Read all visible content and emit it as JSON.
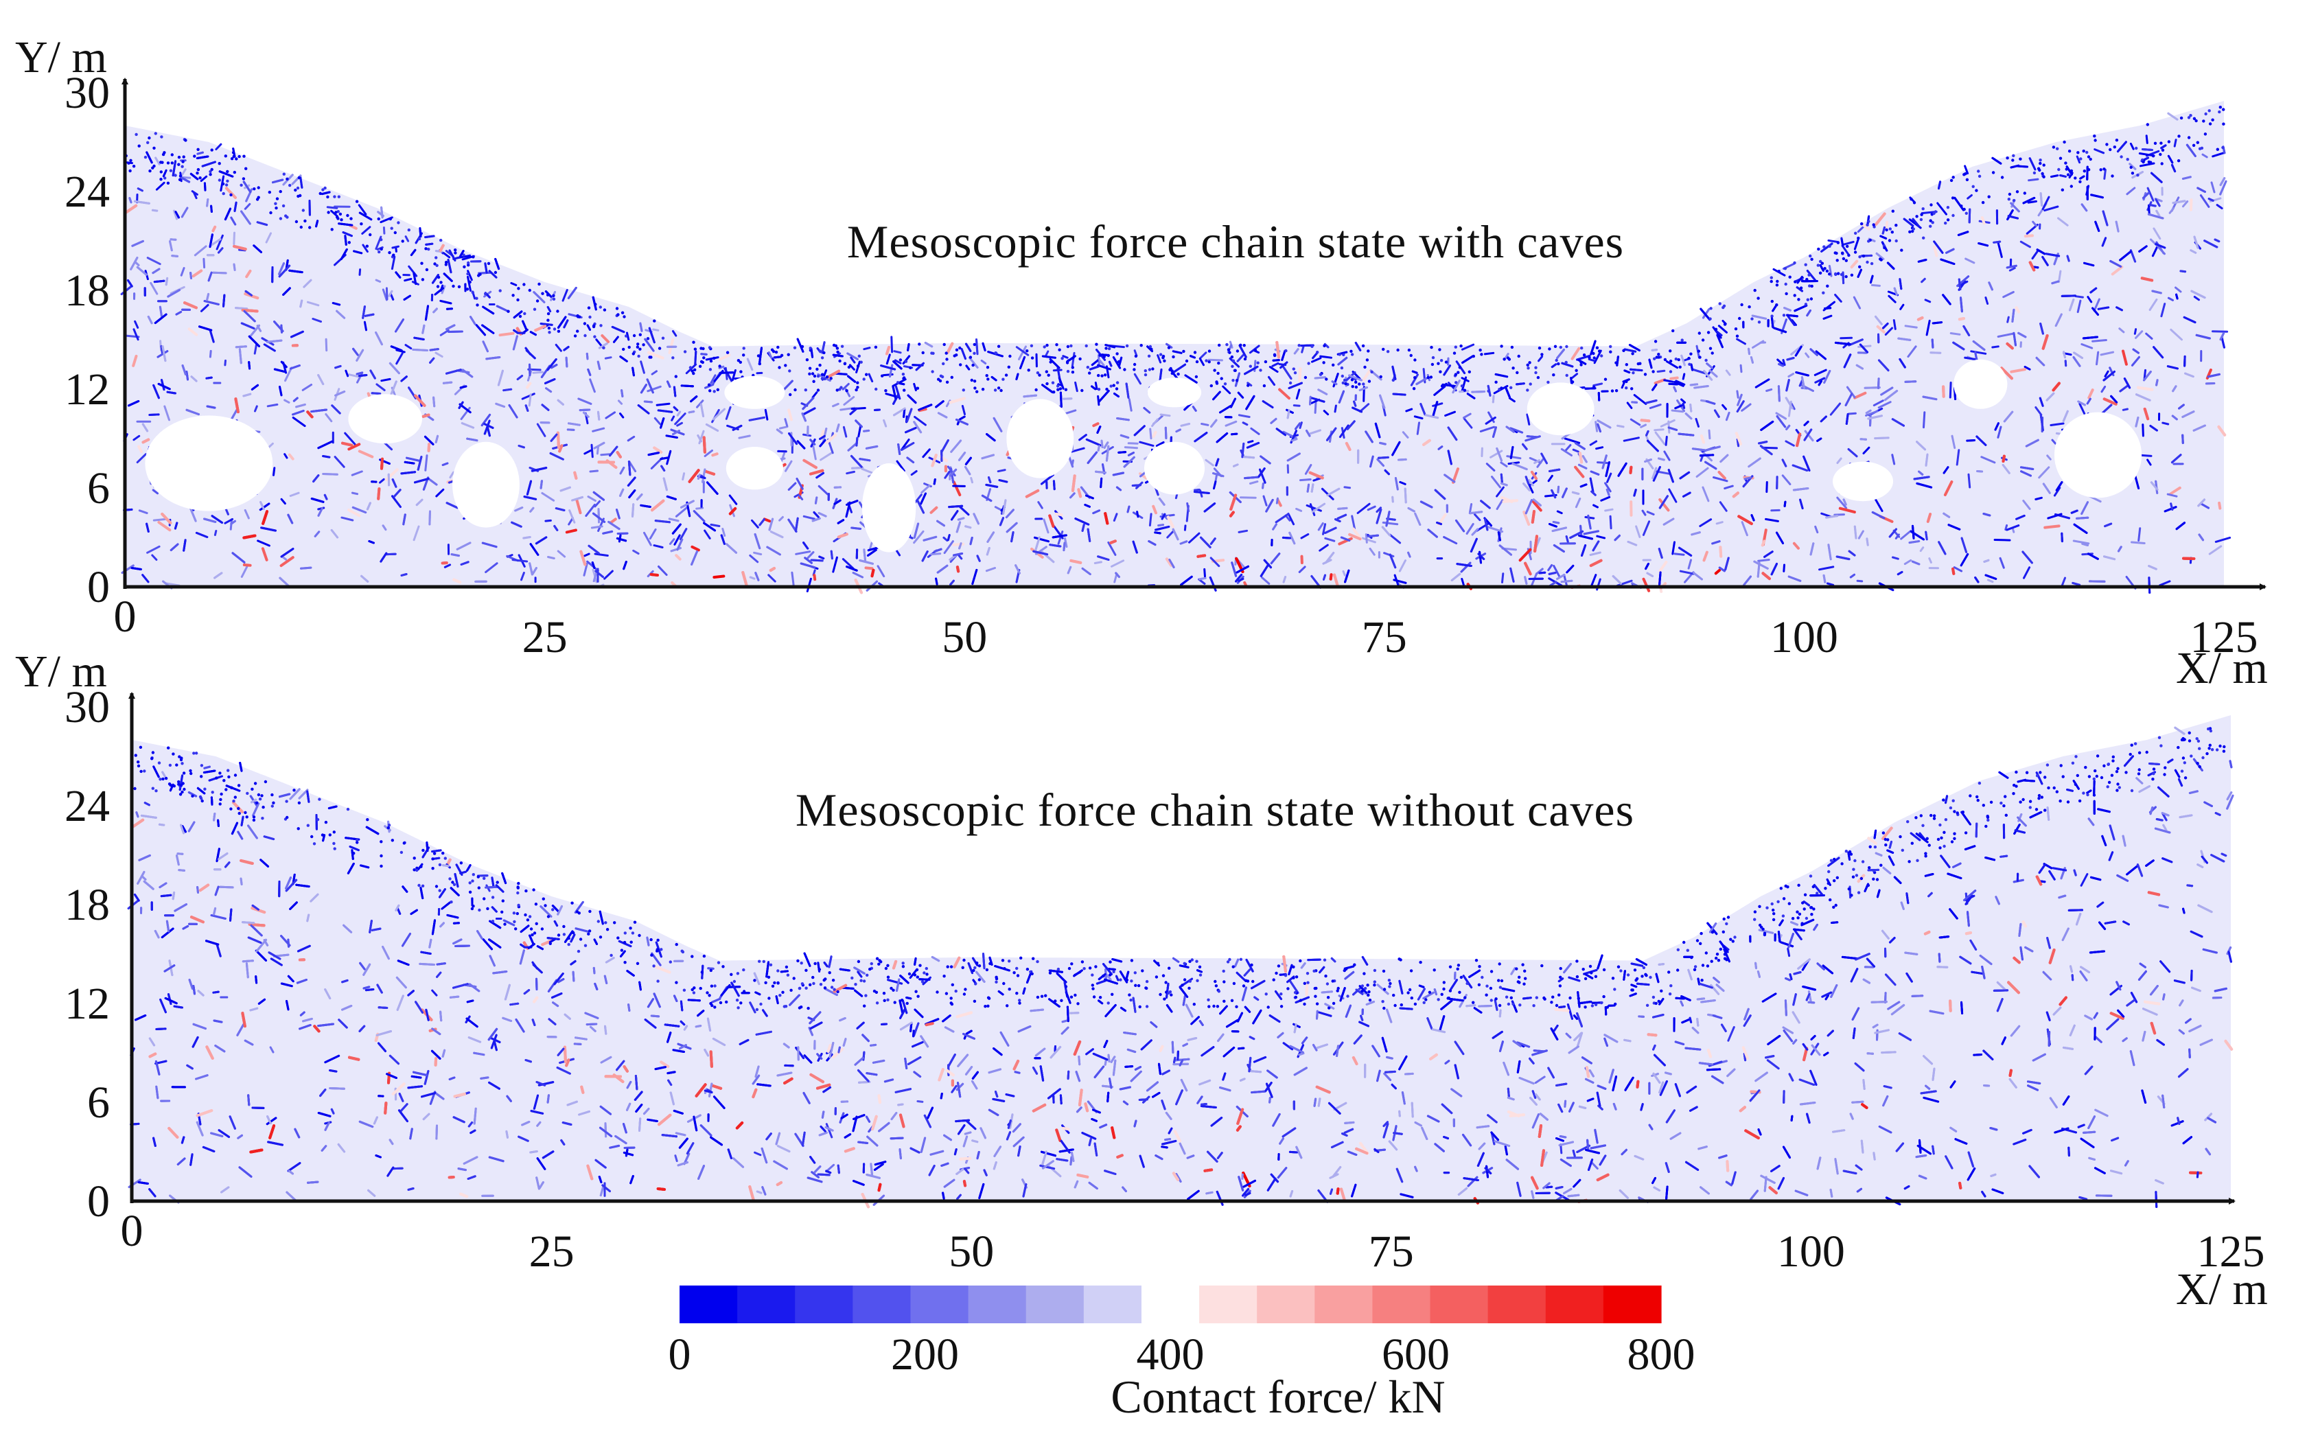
{
  "chart_data": {
    "type": "scatter",
    "description_kind": "force-chain network map (DEM contact forces) drawn as colored particle/contact marks",
    "x_axis_label": "X/ m",
    "y_axis_label": "Y/ m",
    "x_range": [
      0,
      125
    ],
    "y_range": [
      0,
      30
    ],
    "x_ticks": [
      "0",
      "25",
      "50",
      "75",
      "100",
      "125"
    ],
    "y_ticks": [
      "0",
      "6",
      "12",
      "18",
      "24",
      "30"
    ],
    "panels": [
      {
        "title": "Mesoscopic force chain state with caves",
        "caves": [
          {
            "x": 5,
            "y": 7.5,
            "rx": 3.8,
            "ry": 2.9
          },
          {
            "x": 15.5,
            "y": 10.2,
            "rx": 2.2,
            "ry": 1.5
          },
          {
            "x": 21.5,
            "y": 6.2,
            "rx": 2.0,
            "ry": 2.6
          },
          {
            "x": 37.5,
            "y": 11.8,
            "rx": 1.8,
            "ry": 1.0
          },
          {
            "x": 37.5,
            "y": 7.2,
            "rx": 1.7,
            "ry": 1.3
          },
          {
            "x": 45.5,
            "y": 4.8,
            "rx": 1.6,
            "ry": 2.7
          },
          {
            "x": 54.5,
            "y": 9.0,
            "rx": 2.0,
            "ry": 2.4
          },
          {
            "x": 62.5,
            "y": 11.8,
            "rx": 1.6,
            "ry": 0.9
          },
          {
            "x": 62.5,
            "y": 7.2,
            "rx": 1.8,
            "ry": 1.6
          },
          {
            "x": 85.5,
            "y": 10.8,
            "rx": 2.0,
            "ry": 1.6
          },
          {
            "x": 103.5,
            "y": 6.4,
            "rx": 1.8,
            "ry": 1.2
          },
          {
            "x": 110.5,
            "y": 12.3,
            "rx": 1.6,
            "ry": 1.5
          },
          {
            "x": 117.5,
            "y": 8.0,
            "rx": 2.6,
            "ry": 2.6
          }
        ]
      },
      {
        "title": "Mesoscopic force chain state without caves",
        "caves": []
      }
    ],
    "surface_profile": [
      [
        0,
        28
      ],
      [
        5,
        27
      ],
      [
        10,
        25
      ],
      [
        15,
        23
      ],
      [
        20,
        20.5
      ],
      [
        25,
        18.5
      ],
      [
        30,
        17
      ],
      [
        33,
        15.5
      ],
      [
        35,
        14.6
      ],
      [
        50,
        14.8
      ],
      [
        75,
        14.7
      ],
      [
        90,
        14.6
      ],
      [
        93,
        16
      ],
      [
        97,
        18.5
      ],
      [
        100,
        20
      ],
      [
        105,
        23
      ],
      [
        110,
        25.5
      ],
      [
        115,
        27
      ],
      [
        120,
        28
      ],
      [
        125,
        29.5
      ]
    ],
    "colorbar": {
      "title": "Contact force/ kN",
      "ticks": [
        "0",
        "200",
        "400",
        "600",
        "800"
      ],
      "tick_values": [
        0,
        200,
        400,
        600,
        800
      ],
      "range": [
        0,
        800
      ],
      "colors": [
        "#0000ee",
        "#1a1aee",
        "#3535ee",
        "#5252ee",
        "#7070ee",
        "#8f8fee",
        "#adadee",
        "#d0d0f6",
        "#ffffff",
        "#fde0e0",
        "#fbc0c0",
        "#f9a0a0",
        "#f68080",
        "#f46060",
        "#f24040",
        "#f02020",
        "#ee0000"
      ]
    }
  }
}
